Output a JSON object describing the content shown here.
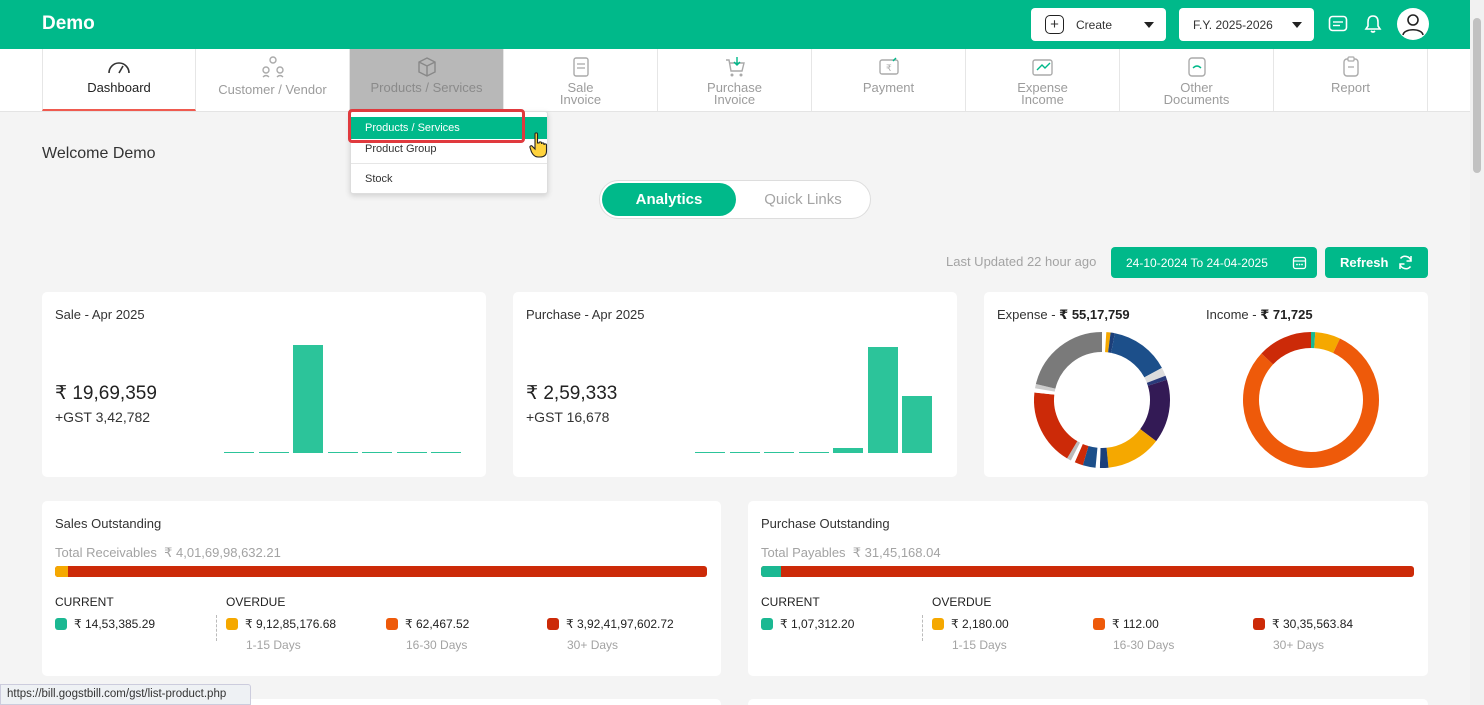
{
  "header": {
    "brand": "Demo",
    "create_label": "Create",
    "fy_label": "F.Y. 2025-2026"
  },
  "nav": {
    "items": [
      {
        "label": "Dashboard",
        "icon": "gauge-icon"
      },
      {
        "label": "Customer / Vendor",
        "icon": "people-icon"
      },
      {
        "label": "Products / Services",
        "icon": "box-icon"
      },
      {
        "label": "Sale Invoice",
        "line1": "Sale",
        "line2": "Invoice",
        "icon": "invoice-icon"
      },
      {
        "label": "Purchase Invoice",
        "line1": "Purchase",
        "line2": "Invoice",
        "icon": "cart-icon"
      },
      {
        "label": "Payment",
        "icon": "payment-icon"
      },
      {
        "label": "Expense Income",
        "line1": "Expense",
        "line2": "Income",
        "icon": "wallet-icon"
      },
      {
        "label": "Other Documents",
        "line1": "Other",
        "line2": "Documents",
        "icon": "document-icon"
      },
      {
        "label": "Report",
        "icon": "clipboard-icon"
      }
    ]
  },
  "dropdown": {
    "items": [
      "Products / Services",
      "Product Group",
      "Stock"
    ]
  },
  "welcome": "Welcome Demo",
  "tabs": {
    "analytics": "Analytics",
    "quick_links": "Quick Links"
  },
  "last_updated": "Last Updated 22 hour ago",
  "date_range": "24-10-2024 To 24-04-2025",
  "refresh_label": "Refresh",
  "sale_card": {
    "title": "Sale - Apr 2025",
    "amount": "₹ 19,69,359",
    "gst": "+GST 3,42,782"
  },
  "purchase_card": {
    "title": "Purchase - Apr 2025",
    "amount": "₹ 2,59,333",
    "gst": "+GST 16,678"
  },
  "expense": {
    "label": "Expense - ",
    "value": "₹ 55,17,759"
  },
  "income": {
    "label": "Income - ",
    "value": "₹ 71,725"
  },
  "sales_outstanding": {
    "title": "Sales Outstanding",
    "total_label": "Total Receivables",
    "total": "₹ 4,01,69,98,632.21",
    "current_label": "CURRENT",
    "overdue_label": "OVERDUE",
    "current": "₹ 14,53,385.29",
    "d1_15": "₹ 9,12,85,176.68",
    "d16_30": "₹ 62,467.52",
    "d30plus": "₹ 3,92,41,97,602.72",
    "days1": "1-15 Days",
    "days2": "16-30 Days",
    "days3": "30+ Days",
    "bar_first_fraction": 0.02,
    "bar_first_color": "#f5a800"
  },
  "purchase_outstanding": {
    "title": "Purchase Outstanding",
    "total_label": "Total Payables",
    "total": "₹ 31,45,168.04",
    "current_label": "CURRENT",
    "overdue_label": "OVERDUE",
    "current": "₹ 1,07,312.20",
    "d1_15": "₹ 2,180.00",
    "d16_30": "₹ 112.00",
    "d30plus": "₹ 30,35,563.84",
    "days1": "1-15 Days",
    "days2": "16-30 Days",
    "days3": "30+ Days",
    "bar_first_fraction": 0.03,
    "bar_first_color": "#1bb892"
  },
  "colors": {
    "primary": "#00b98a",
    "current": "#1bb892",
    "d1_15": "#f5a800",
    "d16_30": "#ee5a0a",
    "d30plus": "#cc2a08"
  },
  "status_url": "https://bill.gogstbill.com/gst/list-product.php",
  "chart_data": [
    {
      "type": "bar",
      "name": "sale",
      "values": [
        1,
        1,
        100,
        1,
        1,
        1,
        1
      ]
    },
    {
      "type": "bar",
      "name": "purchase",
      "values": [
        1,
        1,
        1,
        1,
        5,
        100,
        54
      ]
    },
    {
      "type": "pie",
      "name": "expense",
      "values": [
        1,
        1,
        1,
        14,
        2,
        1,
        15,
        13,
        2,
        1,
        3,
        2,
        1,
        1,
        18,
        1,
        1,
        21
      ],
      "colors": [
        "#ffffff",
        "#f5a800",
        "#1c3f7a",
        "#1c4f8a",
        "#dddddd",
        "#2a3a7a",
        "#331a55",
        "#f5a800",
        "#1c3f7a",
        "#ffffff",
        "#1c4f8a",
        "#cc2a08",
        "#ffffff",
        "#bbbbbb",
        "#cc2a08",
        "#ffffff",
        "#cccccc",
        "#7a7a7a"
      ]
    },
    {
      "type": "pie",
      "name": "income",
      "values": [
        1,
        6,
        80,
        13
      ],
      "colors": [
        "#1bb892",
        "#f5a800",
        "#ee5a0a",
        "#cc2a08"
      ]
    }
  ]
}
